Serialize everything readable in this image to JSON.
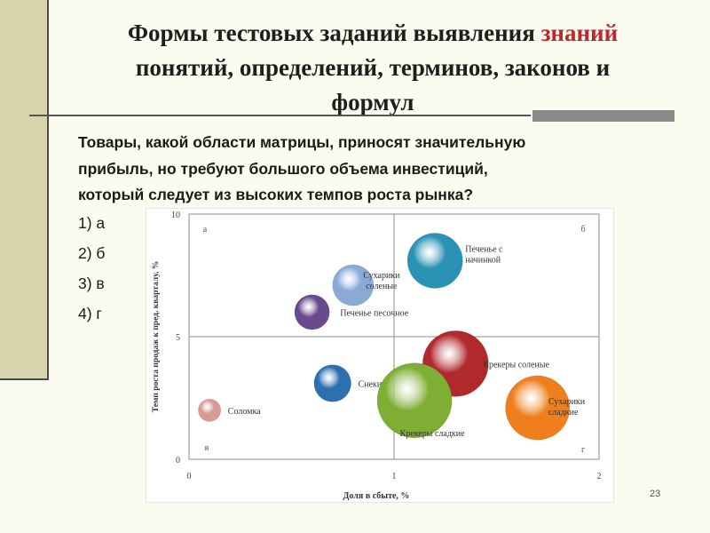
{
  "slide": {
    "title_part1": "Формы тестовых заданий выявления ",
    "title_highlight": "знаний",
    "title_part2": "понятий, определений, терминов, законов и",
    "title_part3": "формул",
    "highlight_color": "#c0272d",
    "question_lines": [
      "Товары, какой области матрицы, приносят значительную",
      "прибыль, но требуют большого объема инвестиций,",
      "который следует из высоких темпов роста рынка?"
    ],
    "answers": [
      "1) а",
      "2) б",
      "3) в",
      "4) г"
    ],
    "page_number": "23"
  },
  "chart_data": {
    "type": "scatter",
    "xlabel": "Доля в сбыте, %",
    "ylabel": "Темп роста продаж к пред. кварталу, %",
    "xlim": [
      0,
      2
    ],
    "ylim": [
      0,
      10
    ],
    "x_ticks": [
      "0",
      "1",
      "2"
    ],
    "y_ticks": [
      "0",
      "5",
      "10"
    ],
    "divider_x": 1,
    "divider_y": 5,
    "quadrants": {
      "top_left": "а",
      "top_right": "б",
      "bottom_left": "в",
      "bottom_right": "г"
    },
    "points": [
      {
        "label": "Печенье с начинкой",
        "x": 1.2,
        "y": 8.1,
        "size": 6,
        "color": "#2a93b5"
      },
      {
        "label": "Сухарики соленые",
        "x": 0.8,
        "y": 7.1,
        "size": 3.3,
        "color": "#8aaad6"
      },
      {
        "label": "Печенье песочное",
        "x": 0.6,
        "y": 6.0,
        "size": 2.4,
        "color": "#6a4a8c"
      },
      {
        "label": "Крекеры соленые",
        "x": 1.3,
        "y": 3.9,
        "size": 8.5,
        "color": "#b1282d"
      },
      {
        "label": "Снеки",
        "x": 0.7,
        "y": 3.1,
        "size": 2.7,
        "color": "#2e6fb0"
      },
      {
        "label": "Соломка",
        "x": 0.1,
        "y": 2.0,
        "size": 1,
        "color": "#d99a96"
      },
      {
        "label": "Крекеры сладкие",
        "x": 1.1,
        "y": 2.4,
        "size": 11,
        "color": "#7fae34"
      },
      {
        "label": "Сухарики сладкие",
        "x": 1.7,
        "y": 2.1,
        "size": 8.1,
        "color": "#ee7f1c"
      }
    ]
  }
}
